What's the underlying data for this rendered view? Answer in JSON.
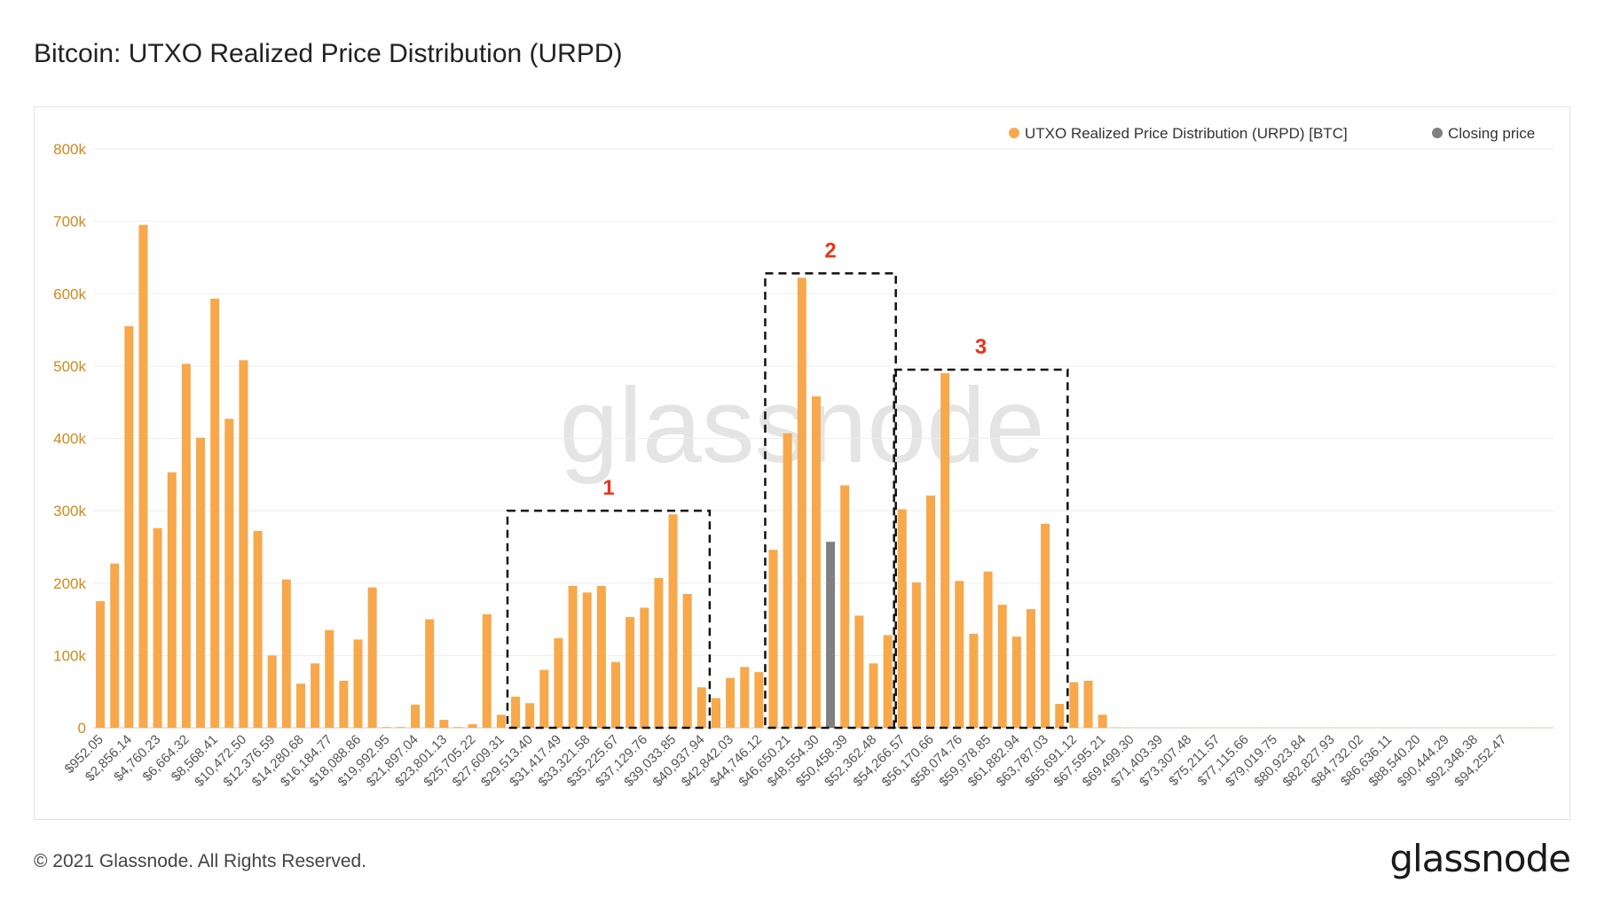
{
  "title": "Bitcoin: UTXO Realized Price Distribution (URPD)",
  "footer": {
    "copyright": "© 2021 Glassnode. All Rights Reserved.",
    "logo": "glassnode"
  },
  "watermark": "glassnode",
  "colors": {
    "bar": "#f7a84b",
    "closing": "#808080",
    "axis_text": "#d08a1e",
    "annotation": "#e8341c",
    "grid": "#eeeeee"
  },
  "annotations": [
    {
      "label": "1",
      "x_from": "$29,513.40",
      "x_to": "$41,890.98"
    },
    {
      "label": "2",
      "x_from": "$45,698.17",
      "x_to": "$53,314.52"
    },
    {
      "label": "3",
      "x_from": "$54,266.57",
      "x_to": "$65,691.12"
    }
  ],
  "chart_data": {
    "type": "bar",
    "ylim": [
      0,
      800000
    ],
    "y_ticks": [
      0,
      100000,
      200000,
      300000,
      400000,
      500000,
      600000,
      700000,
      800000
    ],
    "y_tick_labels": [
      "0",
      "100k",
      "200k",
      "300k",
      "400k",
      "500k",
      "600k",
      "700k",
      "800k"
    ],
    "legend_position": "top-right",
    "legend": [
      {
        "label": "UTXO Realized Price Distribution (URPD) [BTC]",
        "color": "#f7a84b"
      },
      {
        "label": "Closing price",
        "color": "#808080"
      }
    ],
    "closing_price_category": "$48,554.30",
    "tick_labels": [
      "$952.05",
      "$2,856.14",
      "$4,760.23",
      "$6,664.32",
      "$8,568.41",
      "$10,472.50",
      "$12,376.59",
      "$14,280.68",
      "$16,184.77",
      "$18,088.86",
      "$19,992.95",
      "$21,897.04",
      "$23,801.13",
      "$25,705.22",
      "$27,609.31",
      "$29,513.40",
      "$31,417.49",
      "$33,321.58",
      "$35,225.67",
      "$37,129.76",
      "$39,033.85",
      "$40,937.94",
      "$42,842.03",
      "$44,746.12",
      "$46,650.21",
      "$48,554.30",
      "$50,458.39",
      "$52,362.48",
      "$54,266.57",
      "$56,170.66",
      "$58,074.76",
      "$59,978.85",
      "$61,882.94",
      "$63,787.03",
      "$65,691.12",
      "$67,595.21",
      "$69,499.30",
      "$71,403.39",
      "$73,307.48",
      "$75,211.57",
      "$77,115.66",
      "$79,019.75",
      "$80,923.84",
      "$82,827.93",
      "$84,732.02",
      "$86,636.11",
      "$88,540.20",
      "$90,444.29",
      "$92,348.38",
      "$94,252.47"
    ],
    "series": [
      {
        "name": "UTXO Realized Price Distribution (URPD) [BTC]",
        "values": [
          175000,
          227000,
          555000,
          695000,
          276000,
          353000,
          503000,
          401000,
          593000,
          427000,
          508000,
          272000,
          100000,
          205000,
          61000,
          89000,
          135000,
          65000,
          122000,
          194000,
          1000,
          1000,
          32000,
          150000,
          11000,
          1000,
          5000,
          157000,
          18000,
          43000,
          34000,
          80000,
          124000,
          196000,
          187000,
          196000,
          91000,
          153000,
          166000,
          207000,
          295000,
          185000,
          56000,
          41000,
          69000,
          84000,
          77000,
          246000,
          407000,
          622000,
          458000,
          257000,
          335000,
          155000,
          89000,
          128000,
          302000,
          201000,
          321000,
          490000,
          203000,
          130000,
          216000,
          170000,
          126000,
          164000,
          282000,
          33000,
          63000,
          65000,
          18000,
          500,
          200,
          100,
          100,
          100,
          100,
          100,
          100,
          100,
          100,
          100,
          100,
          100,
          100,
          100,
          100,
          100,
          100,
          100,
          100,
          100,
          100,
          100,
          100,
          100,
          100,
          100,
          100,
          100,
          100,
          100
        ]
      }
    ]
  }
}
